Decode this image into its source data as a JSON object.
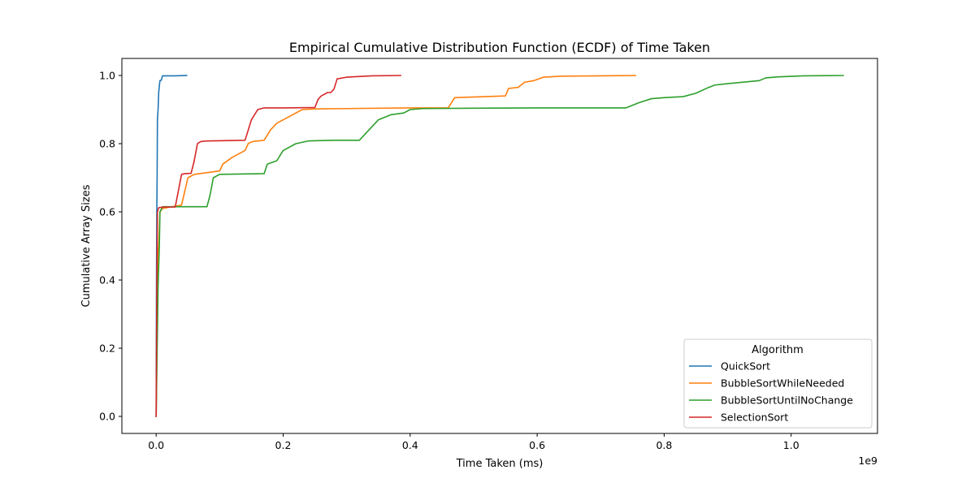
{
  "chart_data": {
    "type": "line",
    "title": "Empirical Cumulative Distribution Function (ECDF) of Time Taken",
    "xlabel": "Time Taken (ms)",
    "ylabel": "Cumulative Array Sizes",
    "x_multiplier": "1e9",
    "xlim": [
      -0.054,
      1.136
    ],
    "ylim": [
      -0.05,
      1.05
    ],
    "x_ticks": [
      {
        "value": 0.0,
        "label": "0.0"
      },
      {
        "value": 0.2,
        "label": "0.2"
      },
      {
        "value": 0.4,
        "label": "0.4"
      },
      {
        "value": 0.6,
        "label": "0.6"
      },
      {
        "value": 0.8,
        "label": "0.8"
      },
      {
        "value": 1.0,
        "label": "1.0"
      }
    ],
    "y_ticks": [
      {
        "value": 0.0,
        "label": "0.0"
      },
      {
        "value": 0.2,
        "label": "0.2"
      },
      {
        "value": 0.4,
        "label": "0.4"
      },
      {
        "value": 0.6,
        "label": "0.6"
      },
      {
        "value": 0.8,
        "label": "0.8"
      },
      {
        "value": 1.0,
        "label": "1.0"
      }
    ],
    "grid": false,
    "legend": {
      "title": "Algorithm",
      "position": "bottom-right"
    },
    "series": [
      {
        "name": "QuickSort",
        "color": "#1f77b4",
        "x": [
          0,
          0.0005,
          0.001,
          0.0015,
          0.002,
          0.003,
          0.004,
          0.005,
          0.006,
          0.008,
          0.01,
          0.03,
          0.048
        ],
        "y": [
          0,
          0.4,
          0.6,
          0.7,
          0.87,
          0.9,
          0.95,
          0.97,
          0.985,
          0.986,
          0.999,
          0.999,
          1.0
        ]
      },
      {
        "name": "BubbleSortWhileNeeded",
        "color": "#ff7f0e",
        "x": [
          0,
          0.002,
          0.003,
          0.004,
          0.006,
          0.01,
          0.04,
          0.045,
          0.05,
          0.06,
          0.1,
          0.105,
          0.12,
          0.13,
          0.14,
          0.145,
          0.15,
          0.155,
          0.17,
          0.18,
          0.19,
          0.21,
          0.23,
          0.25,
          0.3,
          0.4,
          0.46,
          0.47,
          0.55,
          0.555,
          0.57,
          0.58,
          0.595,
          0.61,
          0.64,
          0.7,
          0.755
        ],
        "y": [
          0,
          0.38,
          0.49,
          0.5,
          0.6,
          0.61,
          0.62,
          0.66,
          0.7,
          0.71,
          0.72,
          0.74,
          0.76,
          0.77,
          0.78,
          0.8,
          0.805,
          0.807,
          0.81,
          0.84,
          0.86,
          0.88,
          0.9,
          0.902,
          0.903,
          0.905,
          0.905,
          0.935,
          0.94,
          0.962,
          0.965,
          0.98,
          0.985,
          0.995,
          0.998,
          0.999,
          1.0
        ]
      },
      {
        "name": "BubbleSortUntilNoChange",
        "color": "#2ca02c",
        "x": [
          0,
          0.003,
          0.005,
          0.006,
          0.01,
          0.08,
          0.085,
          0.09,
          0.1,
          0.17,
          0.175,
          0.19,
          0.2,
          0.22,
          0.24,
          0.28,
          0.32,
          0.33,
          0.35,
          0.37,
          0.39,
          0.4,
          0.42,
          0.5,
          0.6,
          0.74,
          0.76,
          0.78,
          0.8,
          0.83,
          0.85,
          0.87,
          0.88,
          0.9,
          0.95,
          0.96,
          0.98,
          1.02,
          1.082
        ],
        "y": [
          0,
          0.38,
          0.5,
          0.6,
          0.615,
          0.615,
          0.65,
          0.7,
          0.71,
          0.712,
          0.74,
          0.75,
          0.78,
          0.8,
          0.808,
          0.81,
          0.81,
          0.83,
          0.87,
          0.885,
          0.89,
          0.9,
          0.903,
          0.904,
          0.905,
          0.905,
          0.92,
          0.932,
          0.935,
          0.938,
          0.948,
          0.965,
          0.972,
          0.976,
          0.985,
          0.993,
          0.996,
          0.999,
          1.0
        ]
      },
      {
        "name": "SelectionSort",
        "color": "#d62728",
        "x": [
          0,
          0.001,
          0.002,
          0.004,
          0.01,
          0.03,
          0.04,
          0.045,
          0.055,
          0.06,
          0.065,
          0.07,
          0.08,
          0.14,
          0.15,
          0.16,
          0.17,
          0.2,
          0.25,
          0.255,
          0.26,
          0.27,
          0.275,
          0.28,
          0.285,
          0.3,
          0.33,
          0.34,
          0.385
        ],
        "y": [
          0,
          0.38,
          0.6,
          0.612,
          0.614,
          0.614,
          0.71,
          0.712,
          0.713,
          0.75,
          0.8,
          0.806,
          0.808,
          0.81,
          0.87,
          0.9,
          0.905,
          0.905,
          0.906,
          0.93,
          0.94,
          0.95,
          0.95,
          0.96,
          0.99,
          0.995,
          0.998,
          0.999,
          1.0
        ]
      }
    ]
  }
}
